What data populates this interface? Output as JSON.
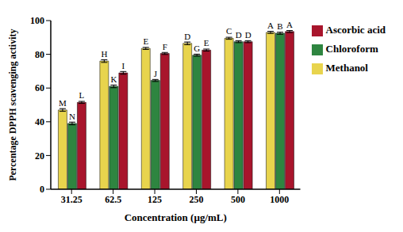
{
  "chart_data": {
    "type": "bar",
    "x_label": "Concentration (µg/mL)",
    "y_label": "Percentage DPPH scavenging activity",
    "categories": [
      "31.25",
      "62.5",
      "125",
      "250",
      "500",
      "1000"
    ],
    "series": [
      {
        "name": "Methanol",
        "color": "#e8d44d",
        "values": [
          47,
          76,
          83.5,
          86.5,
          89.5,
          93
        ],
        "errors": [
          0.8,
          0.8,
          0.6,
          0.8,
          0.6,
          0.6
        ],
        "annotations": [
          "M",
          "H",
          "E",
          "D",
          "C",
          "A"
        ]
      },
      {
        "name": "Chloroform",
        "color": "#2e8540",
        "values": [
          39,
          61,
          64.5,
          79.5,
          87.5,
          92.5
        ],
        "errors": [
          0.8,
          0.8,
          0.6,
          0.6,
          0.6,
          0.6
        ],
        "annotations": [
          "N",
          "K",
          "J",
          "G",
          "D",
          "B"
        ]
      },
      {
        "name": "Ascorbic acid",
        "color": "#a8152c",
        "values": [
          51.5,
          69,
          80.5,
          82.5,
          87.5,
          93.5
        ],
        "errors": [
          0.6,
          0.8,
          0.6,
          0.6,
          0.6,
          0.6
        ],
        "annotations": [
          "L",
          "I",
          "F",
          "E",
          "D",
          "A"
        ]
      }
    ],
    "ylim": [
      0,
      100
    ],
    "yticks": [
      0,
      20,
      40,
      60,
      80,
      100
    ],
    "grid": false,
    "legend": "right"
  }
}
